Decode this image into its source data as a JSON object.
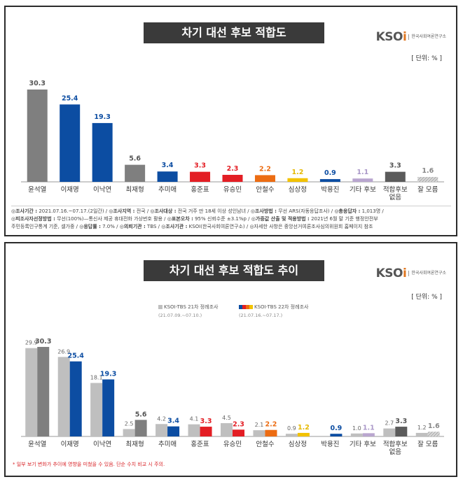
{
  "panel1": {
    "title": "차기 대선 후보 적합도",
    "unit": "[ 단위: % ]",
    "logo": {
      "main_prefix": "KSO",
      "main_dot": "i",
      "sub": "한국사회여론연구소"
    },
    "notes": [
      [
        {
          "k": "◎조사기간 :",
          "v": " 2021.07.16.~07.17.(2일간)  / "
        },
        {
          "k": "◎조사지역 :",
          "v": " 전국  / "
        },
        {
          "k": "◎조사대상 :",
          "v": " 전국 거주 만 18세 이상 성인남녀  / "
        },
        {
          "k": "◎조사방법 :",
          "v": " 무선 ARS(자동응답조사)  / "
        },
        {
          "k": "◎총응답자 :",
          "v": " 1,013명 /"
        }
      ],
      [
        {
          "k": "◎피조사자선정방법 :",
          "v": " 무선(100%)—통신사 제공 휴대전화 가상번호 활용  / "
        },
        {
          "k": "◎표본오차 :",
          "v": " 95% 신뢰수준 ±3.1%p  / "
        },
        {
          "k": "◎가중값 산출 및 적용방법 :",
          "v": " 2021년 6월 말 기준 행정안전부"
        }
      ],
      [
        {
          "k": "",
          "v": "주민등록인구통계 기준, 셀가중  / "
        },
        {
          "k": "◎응답률 :",
          "v": " 7.0%  / "
        },
        {
          "k": "◎의뢰기관 :",
          "v": " TBS  / "
        },
        {
          "k": "◎조사기관 :",
          "v": " KSOI(한국사회여론연구소)  / "
        },
        {
          "k": "",
          "v": "◎자세한 사항은 중앙선거여론조사심의위원회 홈페이지 참조"
        }
      ]
    ]
  },
  "panel2": {
    "title": "차기 대선 후보 적합도 추이",
    "unit": "[ 단위: % ]",
    "logo": {
      "main_prefix": "KSO",
      "main_dot": "i",
      "sub": "한국사회여론연구소"
    },
    "legend": [
      {
        "label": "KSOI-TBS 21차 정례조사",
        "dates": "(21.07.09.~07.10.)"
      },
      {
        "label": "KSOI-TBS 22차 정례조사",
        "dates": "(21.07.16.~07.17.)"
      }
    ],
    "footnote": "* 일부 보기 변화가 추이에 영향을 미쳤을 수 있음. 단순 수치 비교 시 주의."
  },
  "chart_data": [
    {
      "type": "bar",
      "title": "차기 대선 후보 적합도",
      "categories": [
        "윤석열",
        "이재명",
        "이낙연",
        "최재형",
        "추미애",
        "홍준표",
        "유승민",
        "안철수",
        "심상정",
        "박용진",
        "기타 후보",
        "적합후보 없음",
        "잘 모름"
      ],
      "values": [
        30.3,
        25.4,
        19.3,
        5.6,
        3.4,
        3.3,
        2.3,
        2.2,
        1.2,
        0.9,
        1.1,
        3.3,
        1.6
      ],
      "colors": [
        "#7f7f7f",
        "#0c4da2",
        "#0c4da2",
        "#7f7f7f",
        "#0c4da2",
        "#e31e24",
        "#e31e24",
        "#ec6c12",
        "#f2c200",
        "#0c4da2",
        "#b9a6cf",
        "#5b5b5b",
        "#bdbdbd"
      ],
      "label_colors": [
        "#555555",
        "#0c4da2",
        "#0c4da2",
        "#555555",
        "#0c4da2",
        "#e31e24",
        "#e31e24",
        "#ec6c12",
        "#e5b800",
        "#0c4da2",
        "#aa98c8",
        "#555555",
        "#888888"
      ],
      "hatched": [
        false,
        false,
        false,
        false,
        false,
        false,
        false,
        false,
        false,
        false,
        false,
        false,
        true
      ]
    },
    {
      "type": "bar",
      "title": "차기 대선 후보 적합도 추이",
      "categories": [
        "윤석열",
        "이재명",
        "이낙연",
        "최재형",
        "추미애",
        "홍준표",
        "유승민",
        "안철수",
        "심상정",
        "박용진",
        "기타 후보",
        "적합후보 없음",
        "잘 모름"
      ],
      "series": [
        {
          "name": "KSOI-TBS 21차 정례조사",
          "values": [
            29.9,
            26.9,
            18.1,
            2.5,
            4.2,
            4.1,
            4.5,
            2.1,
            0.9,
            null,
            1.0,
            2.7,
            1.2
          ]
        },
        {
          "name": "KSOI-TBS 22차 정례조사",
          "values": [
            30.3,
            25.4,
            19.3,
            5.6,
            3.4,
            3.3,
            2.3,
            2.2,
            1.2,
            0.9,
            1.1,
            3.3,
            1.6
          ]
        }
      ],
      "colors_prev": [
        "#bfbfbf",
        "#bfbfbf",
        "#bfbfbf",
        "#bfbfbf",
        "#bfbfbf",
        "#bfbfbf",
        "#bfbfbf",
        "#bfbfbf",
        "#bfbfbf",
        "#bfbfbf",
        "#bfbfbf",
        "#bfbfbf",
        "#bfbfbf"
      ],
      "colors_curr": [
        "#7f7f7f",
        "#0c4da2",
        "#0c4da2",
        "#7f7f7f",
        "#0c4da2",
        "#e31e24",
        "#e31e24",
        "#ec6c12",
        "#f2c200",
        "#0c4da2",
        "#b9a6cf",
        "#5b5b5b",
        "#bdbdbd"
      ],
      "label_colors": [
        "#555555",
        "#0c4da2",
        "#0c4da2",
        "#555555",
        "#0c4da2",
        "#e31e24",
        "#e31e24",
        "#ec6c12",
        "#e5b800",
        "#0c4da2",
        "#aa98c8",
        "#555555",
        "#888888"
      ],
      "hatched": [
        false,
        false,
        false,
        false,
        false,
        false,
        false,
        false,
        false,
        false,
        false,
        false,
        true
      ]
    }
  ]
}
